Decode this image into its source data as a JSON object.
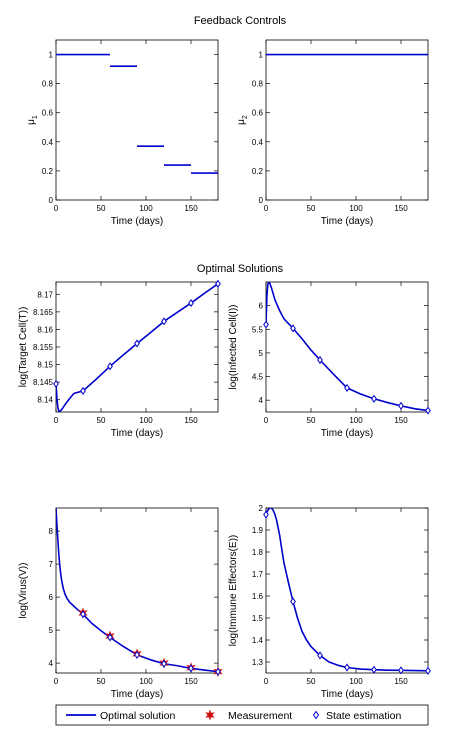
{
  "figure": {
    "section_titles": [
      "Feedback Controls",
      "Optimal Solutions"
    ],
    "colors": {
      "line": "#0000cc",
      "measurement": "#d11111",
      "estimation": "#0000cc",
      "axis": "#000000"
    },
    "legend": {
      "items": [
        {
          "label": "Optimal solution",
          "marker": "line"
        },
        {
          "label": "Measurement",
          "marker": "star"
        },
        {
          "label": "State estimation",
          "marker": "diamond"
        }
      ]
    }
  },
  "chart_data": [
    {
      "id": "mu1",
      "type": "line",
      "title": "",
      "xlabel": "Time (days)",
      "ylabel": "μ1",
      "xlim": [
        0,
        180
      ],
      "ylim": [
        0,
        1.1
      ],
      "xticks": [
        0,
        50,
        100,
        150
      ],
      "yticks": [
        0,
        0.2,
        0.4,
        0.6,
        0.8,
        1
      ],
      "ytick_labels": [
        "0",
        "0.2",
        "0.4",
        "0.6",
        "0.8",
        "1"
      ],
      "segments": [
        {
          "x": [
            0,
            60
          ],
          "y": 1.0
        },
        {
          "x": [
            60,
            90
          ],
          "y": 0.92
        },
        {
          "x": [
            90,
            120
          ],
          "y": 0.37
        },
        {
          "x": [
            120,
            150
          ],
          "y": 0.24
        },
        {
          "x": [
            150,
            180
          ],
          "y": 0.185
        }
      ]
    },
    {
      "id": "mu2",
      "type": "line",
      "title": "",
      "xlabel": "Time (days)",
      "ylabel": "μ2",
      "xlim": [
        0,
        180
      ],
      "ylim": [
        0,
        1.1
      ],
      "xticks": [
        0,
        50,
        100,
        150
      ],
      "yticks": [
        0,
        0.2,
        0.4,
        0.6,
        0.8,
        1
      ],
      "ytick_labels": [
        "0",
        "0.2",
        "0.4",
        "0.6",
        "0.8",
        "1"
      ],
      "segments": [
        {
          "x": [
            0,
            180
          ],
          "y": 1.0
        }
      ]
    },
    {
      "id": "target",
      "type": "line",
      "title": "",
      "xlabel": "Time (days)",
      "ylabel": "log(Target Cell(T))",
      "xlim": [
        0,
        180
      ],
      "ylim": [
        8.1365,
        8.1735
      ],
      "xticks": [
        0,
        50,
        100,
        150
      ],
      "yticks": [
        8.14,
        8.145,
        8.15,
        8.155,
        8.16,
        8.165,
        8.17
      ],
      "ytick_labels": [
        "8.14",
        "8.145",
        "8.15",
        "8.155",
        "8.16",
        "8.165",
        "8.17"
      ],
      "line": {
        "x": [
          0,
          1,
          2,
          3,
          4,
          6,
          8,
          10,
          15,
          20,
          30,
          45,
          60,
          75,
          90,
          105,
          120,
          135,
          150,
          165,
          180
        ],
        "y": [
          8.1445,
          8.1405,
          8.138,
          8.1368,
          8.1366,
          8.1371,
          8.1378,
          8.1386,
          8.1403,
          8.1418,
          8.1425,
          8.1459,
          8.1495,
          8.1528,
          8.156,
          8.1591,
          8.1623,
          8.1649,
          8.1675,
          8.1703,
          8.173
        ]
      },
      "estimation": {
        "x": [
          0,
          30,
          60,
          90,
          120,
          150,
          180
        ],
        "y": [
          8.1445,
          8.1425,
          8.1495,
          8.156,
          8.1623,
          8.1675,
          8.173
        ]
      },
      "measurement": null
    },
    {
      "id": "infected",
      "type": "line",
      "title": "",
      "xlabel": "Time (days)",
      "ylabel": "log(Infected Cell(I))",
      "xlim": [
        0,
        180
      ],
      "ylim": [
        3.75,
        6.5
      ],
      "xticks": [
        0,
        50,
        100,
        150
      ],
      "yticks": [
        4,
        4.5,
        5,
        5.5,
        6
      ],
      "ytick_labels": [
        "4",
        "4.5",
        "5",
        "5.5",
        "6"
      ],
      "line": {
        "x": [
          0,
          1,
          2,
          3,
          4,
          6,
          8,
          10,
          15,
          20,
          30,
          40,
          50,
          60,
          75,
          90,
          105,
          120,
          135,
          150,
          165,
          180
        ],
        "y": [
          5.6,
          6.2,
          6.45,
          6.5,
          6.48,
          6.38,
          6.25,
          6.12,
          5.9,
          5.72,
          5.52,
          5.3,
          5.06,
          4.85,
          4.55,
          4.26,
          4.13,
          4.03,
          3.95,
          3.88,
          3.82,
          3.78
        ]
      },
      "estimation": {
        "x": [
          0,
          30,
          60,
          90,
          120,
          150,
          180
        ],
        "y": [
          5.6,
          5.52,
          4.85,
          4.26,
          4.03,
          3.88,
          3.78
        ]
      },
      "measurement": null
    },
    {
      "id": "virus",
      "type": "line",
      "title": "",
      "xlabel": "Time (days)",
      "ylabel": "log(Virus(V))",
      "xlim": [
        0,
        180
      ],
      "ylim": [
        3.7,
        8.7
      ],
      "xticks": [
        0,
        50,
        100,
        150
      ],
      "yticks": [
        4,
        5,
        6,
        7,
        8
      ],
      "ytick_labels": [
        "4",
        "5",
        "6",
        "7",
        "8"
      ],
      "line": {
        "x": [
          0,
          1,
          2,
          3,
          4,
          5,
          6,
          8,
          10,
          12,
          15,
          20,
          25,
          30,
          40,
          50,
          60,
          75,
          90,
          105,
          120,
          135,
          150,
          165,
          180
        ],
        "y": [
          8.7,
          8.2,
          7.75,
          7.35,
          7.02,
          6.75,
          6.55,
          6.27,
          6.09,
          5.97,
          5.85,
          5.72,
          5.6,
          5.48,
          5.2,
          4.98,
          4.78,
          4.5,
          4.25,
          4.1,
          3.98,
          3.92,
          3.84,
          3.79,
          3.74
        ]
      },
      "estimation": {
        "x": [
          30,
          60,
          90,
          120,
          150,
          180
        ],
        "y": [
          5.48,
          4.78,
          4.25,
          3.98,
          3.84,
          3.74
        ]
      },
      "measurement": {
        "x": [
          30,
          60,
          90,
          120,
          150,
          180
        ],
        "y": [
          5.52,
          4.82,
          4.28,
          4.0,
          3.86,
          3.74
        ]
      }
    },
    {
      "id": "immune",
      "type": "line",
      "title": "",
      "xlabel": "Time (days)",
      "ylabel": "log(Immune Effectors(E))",
      "xlim": [
        0,
        180
      ],
      "ylim": [
        1.25,
        2.0
      ],
      "xticks": [
        0,
        50,
        100,
        150
      ],
      "yticks": [
        1.3,
        1.4,
        1.5,
        1.6,
        1.7,
        1.8,
        1.9,
        2
      ],
      "ytick_labels": [
        "1.3",
        "1.4",
        "1.5",
        "1.6",
        "1.7",
        "1.8",
        "1.9",
        "2"
      ],
      "line": {
        "x": [
          0,
          2,
          4,
          6,
          8,
          10,
          12,
          15,
          18,
          20,
          25,
          30,
          35,
          40,
          45,
          50,
          60,
          70,
          80,
          90,
          105,
          120,
          135,
          150,
          165,
          180
        ],
        "y": [
          1.97,
          1.99,
          2.0,
          2.0,
          1.99,
          1.97,
          1.94,
          1.88,
          1.8,
          1.75,
          1.66,
          1.575,
          1.5,
          1.44,
          1.4,
          1.37,
          1.33,
          1.3,
          1.285,
          1.275,
          1.268,
          1.265,
          1.263,
          1.262,
          1.261,
          1.26
        ]
      },
      "estimation": {
        "x": [
          0,
          30,
          60,
          90,
          120,
          150,
          180
        ],
        "y": [
          1.97,
          1.575,
          1.33,
          1.275,
          1.265,
          1.262,
          1.26
        ]
      },
      "measurement": null
    }
  ]
}
